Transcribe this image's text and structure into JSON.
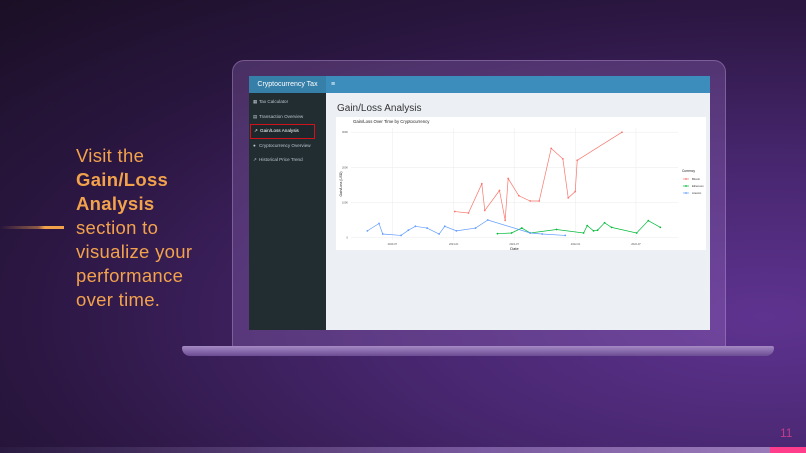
{
  "slide": {
    "lines": [
      {
        "text": "Visit the",
        "bold": false
      },
      {
        "text": "Gain/Loss",
        "bold": true
      },
      {
        "text": "Analysis",
        "bold": true
      },
      {
        "text": "section to",
        "bold": false
      },
      {
        "text": "visualize your",
        "bold": false
      },
      {
        "text": "performance",
        "bold": false
      },
      {
        "text": "over time.",
        "bold": false
      }
    ],
    "page_number": "11",
    "accent": "#f3a24c"
  },
  "app": {
    "brand": "Cryptocurrency Tax",
    "menu_icon": "≡",
    "sidebar": [
      {
        "label": "Tax Calculator",
        "icon": "calculator-icon",
        "glyph": "▦"
      },
      {
        "label": "Transaction Overview",
        "icon": "table-icon",
        "glyph": "▤"
      },
      {
        "label": "Gain/Loss Analysis",
        "icon": "line-chart-icon",
        "glyph": "↗",
        "active": true
      },
      {
        "label": "Cryptocurrency Overview",
        "icon": "globe-icon",
        "glyph": "●"
      },
      {
        "label": "Historical Price Trend",
        "icon": "line-chart-icon",
        "glyph": "↗"
      }
    ],
    "page_title": "Gain/Loss Analysis"
  },
  "chart_data": {
    "type": "line",
    "title": "Gain/Loss Over Time by Cryptocurrency",
    "xlabel": "Date",
    "ylabel": "Gain/Loss (USD)",
    "xlim": [
      "2020-02-28",
      "2022-11-04"
    ],
    "ylim": [
      -7000,
      312000
    ],
    "grid": true,
    "legend_title": "Currency",
    "legend_position": "right",
    "xticks": [
      "2020-07",
      "2021-01",
      "2021-07",
      "2022-01",
      "2022-07"
    ],
    "yticks": [
      {
        "v": 0,
        "label": "0"
      },
      {
        "v": 100000,
        "label": "100K"
      },
      {
        "v": 200000,
        "label": "200K"
      },
      {
        "v": 300000,
        "label": "300K"
      }
    ],
    "series": [
      {
        "name": "Bitcoin",
        "color": "#f8766d",
        "x": [
          "2021-01-04",
          "2021-02-14",
          "2021-03-26",
          "2021-04-04",
          "2021-05-18",
          "2021-06-04",
          "2021-06-13",
          "2021-07-15",
          "2021-08-18",
          "2021-09-14",
          "2021-10-20",
          "2021-11-24",
          "2021-12-10",
          "2021-12-31",
          "2022-01-06",
          "2022-05-20"
        ],
        "y": [
          74000,
          70000,
          153000,
          77000,
          134000,
          49000,
          168000,
          119000,
          104000,
          104000,
          254000,
          224000,
          113000,
          131000,
          220000,
          300000
        ]
      },
      {
        "name": "Ethereum",
        "color": "#00ba38",
        "x": [
          "2021-05-12",
          "2021-06-23",
          "2021-07-24",
          "2021-08-18",
          "2021-11-05",
          "2022-01-25",
          "2022-02-05",
          "2022-02-24",
          "2022-03-08",
          "2022-03-29",
          "2022-04-19",
          "2022-07-03",
          "2022-08-07",
          "2022-09-12"
        ],
        "y": [
          11000,
          13000,
          27000,
          13000,
          23000,
          13000,
          34000,
          19000,
          21000,
          42000,
          29000,
          13000,
          48000,
          29000
        ]
      },
      {
        "name": "Litecoin",
        "color": "#619cff",
        "x": [
          "2020-04-17",
          "2020-05-22",
          "2020-06-02",
          "2020-07-27",
          "2020-08-18",
          "2020-09-08",
          "2020-10-13",
          "2020-11-18",
          "2020-12-05",
          "2021-01-09",
          "2021-03-07",
          "2021-04-13",
          "2021-08-18",
          "2021-09-23",
          "2021-12-01"
        ],
        "y": [
          19000,
          40000,
          10000,
          6000,
          21000,
          32000,
          27000,
          10000,
          32000,
          19000,
          27000,
          50000,
          13000,
          10000,
          6000
        ]
      }
    ]
  }
}
